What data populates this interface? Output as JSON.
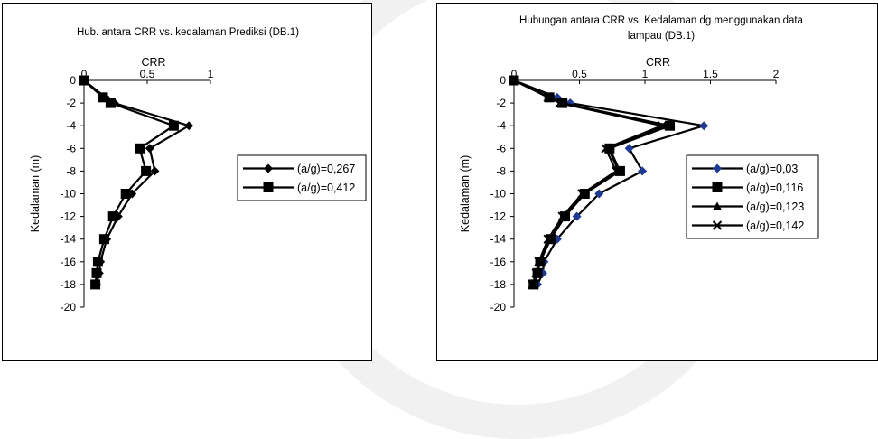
{
  "chart_data": [
    {
      "type": "line",
      "title": "Hub. antara CRR vs. kedalaman Prediksi (DB.1)",
      "xlabel": "CRR",
      "ylabel": "Kedalaman (m)",
      "xlim": [
        0,
        1
      ],
      "ylim": [
        -20,
        0
      ],
      "xticks": [
        0,
        0.5,
        1
      ],
      "yticks": [
        0,
        -2,
        -4,
        -6,
        -8,
        -10,
        -12,
        -14,
        -16,
        -18,
        -20
      ],
      "x_axis_position": "top",
      "grid": false,
      "legend_position": "right",
      "series": [
        {
          "name": "(a/g)=0,267",
          "marker": "diamond",
          "x": [
            0.0,
            0.17,
            0.24,
            0.83,
            0.52,
            0.56,
            0.38,
            0.27,
            0.18,
            0.13,
            0.12,
            0.1
          ],
          "y": [
            0,
            -1.5,
            -2,
            -4,
            -6,
            -8,
            -10,
            -12,
            -14,
            -16,
            -17,
            -18
          ]
        },
        {
          "name": "(a/g)=0,412",
          "marker": "square",
          "x": [
            0.0,
            0.15,
            0.21,
            0.71,
            0.44,
            0.49,
            0.33,
            0.23,
            0.16,
            0.11,
            0.1,
            0.09
          ],
          "y": [
            0,
            -1.5,
            -2,
            -4,
            -6,
            -8,
            -10,
            -12,
            -14,
            -16,
            -17,
            -18
          ]
        }
      ]
    },
    {
      "type": "line",
      "title": "Hubungan antara CRR vs. Kedalaman dg menggunakan data lampau (DB.1)",
      "xlabel": "CRR",
      "ylabel": "Kedalaman (m)",
      "xlim": [
        0,
        2
      ],
      "ylim": [
        -20,
        0
      ],
      "xticks": [
        0,
        0.5,
        1,
        1.5,
        2
      ],
      "yticks": [
        0,
        -2,
        -4,
        -6,
        -8,
        -10,
        -12,
        -14,
        -16,
        -18,
        -20
      ],
      "x_axis_position": "top",
      "grid": false,
      "legend_position": "right",
      "series": [
        {
          "name": "(a/g)=0,03",
          "marker": "diamond",
          "color": "#1f3a93",
          "x": [
            0.0,
            0.33,
            0.43,
            1.45,
            0.88,
            0.98,
            0.65,
            0.48,
            0.33,
            0.23,
            0.22,
            0.18
          ],
          "y": [
            0,
            -1.5,
            -2,
            -4,
            -6,
            -8,
            -10,
            -12,
            -14,
            -16,
            -17,
            -18
          ]
        },
        {
          "name": "(a/g)=0,116",
          "marker": "square",
          "x": [
            0.0,
            0.27,
            0.37,
            1.19,
            0.73,
            0.81,
            0.54,
            0.39,
            0.28,
            0.2,
            0.18,
            0.15
          ],
          "y": [
            0,
            -1.5,
            -2,
            -4,
            -6,
            -8,
            -10,
            -12,
            -14,
            -16,
            -17,
            -18
          ]
        },
        {
          "name": "(a/g)=0,123",
          "marker": "triangle",
          "x": [
            0.0,
            0.27,
            0.36,
            1.17,
            0.72,
            0.8,
            0.53,
            0.38,
            0.27,
            0.19,
            0.17,
            0.15
          ],
          "y": [
            0,
            -1.5,
            -2,
            -4,
            -6,
            -8,
            -10,
            -12,
            -14,
            -16,
            -17,
            -18
          ]
        },
        {
          "name": "(a/g)=0,142",
          "marker": "x",
          "x": [
            0.0,
            0.26,
            0.35,
            1.13,
            0.7,
            0.78,
            0.52,
            0.37,
            0.26,
            0.19,
            0.17,
            0.14
          ],
          "y": [
            0,
            -1.5,
            -2,
            -4,
            -6,
            -8,
            -10,
            -12,
            -14,
            -16,
            -17,
            -18
          ]
        }
      ]
    }
  ]
}
